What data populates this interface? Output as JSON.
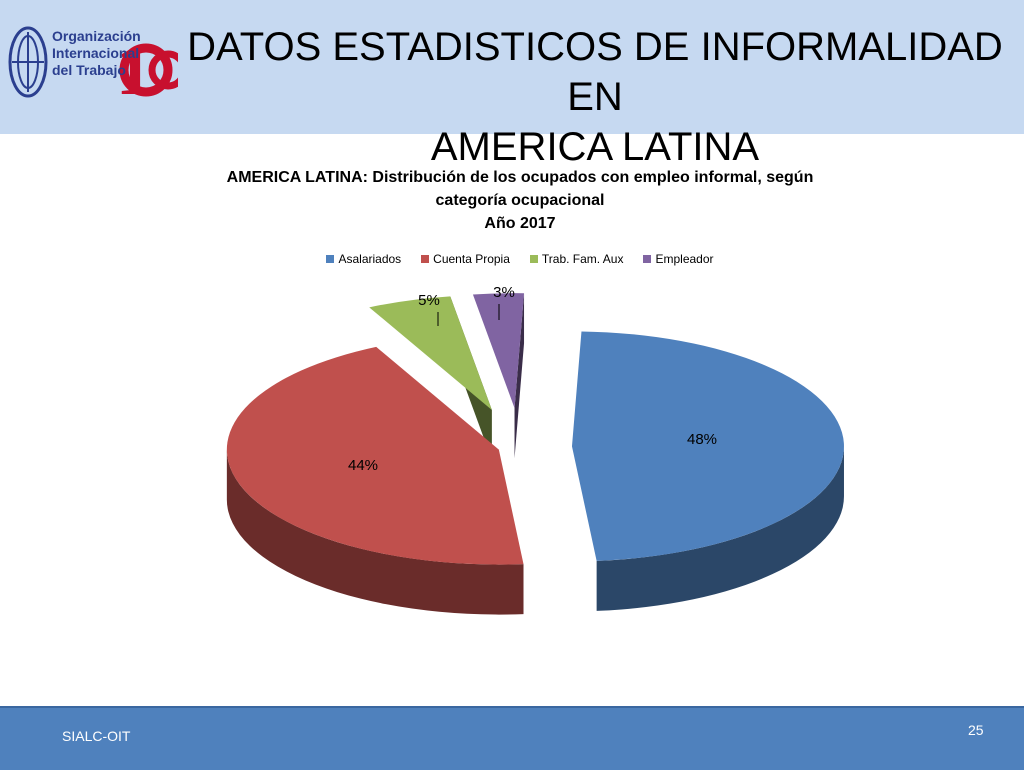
{
  "header": {
    "title_line1": "DATOS ESTADISTICOS DE INFORMALIDAD EN",
    "title_line2": "AMERICA LATINA",
    "logo": {
      "line1": "Organización",
      "line2": "Internacional",
      "line3": "del Trabajo",
      "brand_color": "#2b3f8f",
      "accent_color": "#c8102e"
    }
  },
  "chart_data": {
    "type": "pie",
    "title_line1": "AMERICA LATINA: Distribución de los ocupados con empleo informal, según",
    "title_line2": "categoría ocupacional",
    "title_line3": "Año 2017",
    "legend_position": "top",
    "categories": [
      "Asalariados",
      "Cuenta Propia",
      "Trab. Fam. Aux",
      "Empleador"
    ],
    "values": [
      48,
      44,
      5,
      3
    ],
    "labels": [
      "48%",
      "44%",
      "5%",
      "3%"
    ],
    "colors": [
      "#4f81bd",
      "#c0504d",
      "#9bbb59",
      "#8064a2"
    ],
    "exploded": true
  },
  "footer": {
    "source": "SIALC-OIT",
    "page_number": "25"
  }
}
